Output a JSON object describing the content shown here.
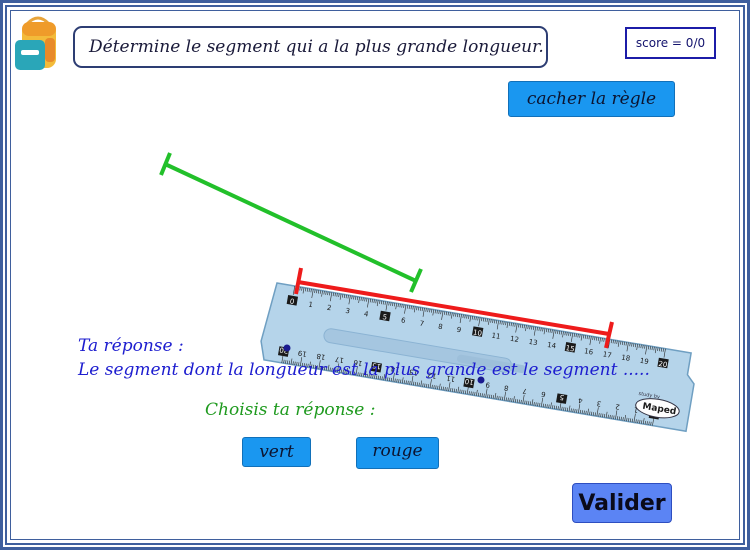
{
  "instruction": "Détermine le segment qui a la plus grande longueur.",
  "score": "score = 0/0",
  "buttons": {
    "hide_ruler": "cacher la règle",
    "green": "vert",
    "red": "rouge",
    "validate": "Valider"
  },
  "answer": {
    "label": "Ta réponse :",
    "sentence": "Le segment dont la longueur est la plus grande est le segment .....",
    "choose_prompt": "Choisis ta réponse :"
  },
  "ruler": {
    "top_numbers": [
      "0",
      "1",
      "2",
      "3",
      "4",
      "5",
      "6",
      "7",
      "8",
      "9",
      "10",
      "11",
      "12",
      "13",
      "14",
      "15",
      "16",
      "17",
      "18",
      "19",
      "20"
    ],
    "bottom_numbers": [
      "20",
      "19",
      "18",
      "17",
      "16",
      "15",
      "14",
      "13",
      "12",
      "11",
      "10",
      "9",
      "8",
      "7",
      "6",
      "5",
      "4",
      "3",
      "2",
      "1",
      "0"
    ],
    "brand": "Maped",
    "brand_small": "study by"
  },
  "colors": {
    "frame": "#3f5f9d",
    "button": "#1a97f0",
    "validate_button": "#5b84f4",
    "answer_text": "#1d1dcf",
    "prompt_text": "#1f9a1f",
    "segment_green": "#22c02a",
    "segment_red": "#ee1b1b",
    "ruler": "#b5d4ea"
  },
  "icons": {
    "app": "backpack-icon"
  }
}
